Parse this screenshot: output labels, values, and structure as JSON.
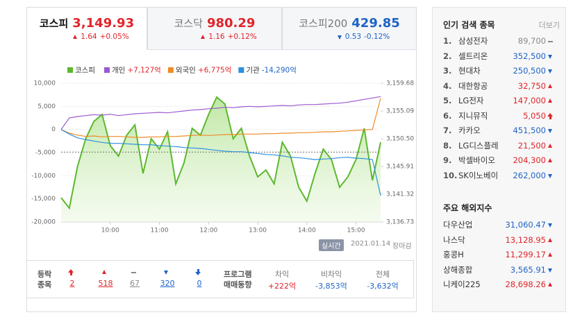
{
  "tabs": [
    {
      "name": "코스피",
      "value": "3,149.93",
      "change": "1.64",
      "rate": "+0.05%",
      "dir": "up"
    },
    {
      "name": "코스닥",
      "value": "980.29",
      "change": "1.16",
      "rate": "+0.12%",
      "dir": "up"
    },
    {
      "name": "코스피200",
      "value": "429.85",
      "change": "0.53",
      "rate": "-0.12%",
      "dir": "down"
    }
  ],
  "chart_data": {
    "type": "line",
    "x": [
      540,
      550,
      560,
      570,
      580,
      590,
      600,
      610,
      620,
      630,
      640,
      650,
      660,
      670,
      680,
      690,
      700,
      710,
      720,
      730,
      740,
      750,
      760,
      770,
      780,
      790,
      800,
      810,
      820,
      830,
      840,
      850,
      860,
      870,
      880,
      890,
      900,
      910,
      920,
      930
    ],
    "xlim": [
      540,
      930
    ],
    "xticks": [
      {
        "value": 600,
        "label": "10:00"
      },
      {
        "value": 660,
        "label": "11:00"
      },
      {
        "value": 720,
        "label": "12:00"
      },
      {
        "value": 780,
        "label": "13:00"
      },
      {
        "value": 840,
        "label": "14:00"
      },
      {
        "value": 900,
        "label": "15:00"
      }
    ],
    "ylim": [
      -20000,
      10000
    ],
    "yticks": [
      {
        "value": 10000,
        "label": "10,000"
      },
      {
        "value": 5000,
        "label": "5,000"
      },
      0,
      {
        "value": -5000,
        "label": "-5,000"
      },
      {
        "value": -10000,
        "label": "-10,000"
      },
      {
        "value": -15000,
        "label": "-15,000"
      },
      {
        "value": -20000,
        "label": "-20,000"
      }
    ],
    "y2lim": [
      3136.73,
      3159.68
    ],
    "y2ticks": [
      {
        "value": 3159.68,
        "label": "3,159.68"
      },
      {
        "value": 3155.09,
        "label": "3,155.09"
      },
      {
        "value": 3150.5,
        "label": "3,150.50"
      },
      {
        "value": 3145.91,
        "label": "3,145.91"
      },
      {
        "value": 3141.32,
        "label": "3,141.32"
      },
      {
        "value": 3136.73,
        "label": "3,136.73"
      }
    ],
    "reference_line": 3148.29,
    "grid": true,
    "series": [
      {
        "name": "코스피",
        "color": "#5cb82e",
        "axis": "y2",
        "area": true,
        "values": [
          3140.75,
          3139.03,
          3145.91,
          3150.5,
          3153.37,
          3154.52,
          3149.35,
          3147.63,
          3151.07,
          3152.8,
          3144.76,
          3150.5,
          3148.78,
          3151.65,
          3143.04,
          3146.48,
          3152.22,
          3151.07,
          3154.52,
          3157.39,
          3156.24,
          3150.5,
          3152.22,
          3147.63,
          3144.19,
          3145.34,
          3143.04,
          3149.93,
          3147.63,
          3142.47,
          3140.17,
          3144.76,
          3148.78,
          3147.06,
          3142.47,
          3144.19,
          3147.06,
          3152.22,
          3143.62,
          3149.93
        ]
      },
      {
        "name": "개인",
        "value_label": "+7,127억",
        "color": "#9b59d0",
        "values": [
          0,
          2500,
          2800,
          3000,
          3200,
          3100,
          3300,
          3000,
          3200,
          3400,
          3500,
          3600,
          3700,
          3600,
          3800,
          4000,
          4200,
          4300,
          4500,
          4600,
          4800,
          4700,
          4900,
          5000,
          4900,
          5000,
          5100,
          5200,
          5100,
          5300,
          5400,
          5400,
          5500,
          5600,
          5700,
          5900,
          6200,
          6500,
          6800,
          7127
        ]
      },
      {
        "name": "외국인",
        "value_label": "+6,775억",
        "color": "#f08a24",
        "values": [
          0,
          -800,
          -1200,
          -1500,
          -1400,
          -1600,
          -1500,
          -1500,
          -1600,
          -1700,
          -1700,
          -1600,
          -1600,
          -1500,
          -1500,
          -1400,
          -1300,
          -1200,
          -1300,
          -1200,
          -1100,
          -1100,
          -1000,
          -1000,
          -1000,
          -900,
          -900,
          -800,
          -800,
          -700,
          -700,
          -600,
          -500,
          -500,
          -400,
          -300,
          -200,
          -100,
          0,
          6775
        ]
      },
      {
        "name": "기관",
        "value_label": "-14,290억",
        "color": "#2d8fe0",
        "values": [
          0,
          -1000,
          -1800,
          -2200,
          -2500,
          -2800,
          -3000,
          -3000,
          -3100,
          -3200,
          -3300,
          -3300,
          -3500,
          -3600,
          -3700,
          -3900,
          -4000,
          -4100,
          -4300,
          -4500,
          -4700,
          -4800,
          -4800,
          -5000,
          -5200,
          -5400,
          -5500,
          -5700,
          -6000,
          -6100,
          -6300,
          -6500,
          -6400,
          -6300,
          -6100,
          -6000,
          -6200,
          -6300,
          -6500,
          -14290
        ]
      }
    ]
  },
  "status": {
    "badge": "실시간",
    "date": "2021.01.14",
    "state": "장마감"
  },
  "breadth": {
    "label": [
      "등락",
      "종목"
    ],
    "items": [
      {
        "value": "2",
        "dir": "limit-up"
      },
      {
        "value": "518",
        "dir": "up"
      },
      {
        "value": "67",
        "dir": "flat"
      },
      {
        "value": "320",
        "dir": "down"
      },
      {
        "value": "0",
        "dir": "limit-down"
      }
    ]
  },
  "program": {
    "label": [
      "프로그램",
      "매매동향"
    ],
    "items": [
      {
        "name": "차익",
        "value": "+222억"
      },
      {
        "name": "비차익",
        "value": "-3,853억"
      },
      {
        "name": "전체",
        "value": "-3,632억"
      }
    ]
  },
  "popular": {
    "title": "인기 검색 종목",
    "more": "더보기",
    "items": [
      {
        "rank": "1.",
        "name": "삼성전자",
        "price": "89,700",
        "dir": "flat"
      },
      {
        "rank": "2.",
        "name": "셀트리온",
        "price": "352,500",
        "dir": "down"
      },
      {
        "rank": "3.",
        "name": "현대차",
        "price": "250,500",
        "dir": "down"
      },
      {
        "rank": "4.",
        "name": "대한항공",
        "price": "32,750",
        "dir": "up"
      },
      {
        "rank": "5.",
        "name": "LG전자",
        "price": "147,000",
        "dir": "up"
      },
      {
        "rank": "6.",
        "name": "지니뮤직",
        "price": "5,050",
        "dir": "limit-up"
      },
      {
        "rank": "7.",
        "name": "카카오",
        "price": "451,500",
        "dir": "down"
      },
      {
        "rank": "8.",
        "name": "LG디스플레",
        "price": "21,500",
        "dir": "up"
      },
      {
        "rank": "9.",
        "name": "박셀바이오",
        "price": "204,300",
        "dir": "up"
      },
      {
        "rank": "10.",
        "name": "SK이노베이",
        "price": "262,000",
        "dir": "down"
      }
    ]
  },
  "overseas": {
    "title": "주요 해외지수",
    "items": [
      {
        "name": "다우산업",
        "value": "31,060.47",
        "dir": "down"
      },
      {
        "name": "나스닥",
        "value": "13,128.95",
        "dir": "up"
      },
      {
        "name": "홍콩H",
        "value": "11,299.17",
        "dir": "up"
      },
      {
        "name": "상해종합",
        "value": "3,565.91",
        "dir": "down"
      },
      {
        "name": "니케이225",
        "value": "28,698.26",
        "dir": "up"
      }
    ]
  }
}
